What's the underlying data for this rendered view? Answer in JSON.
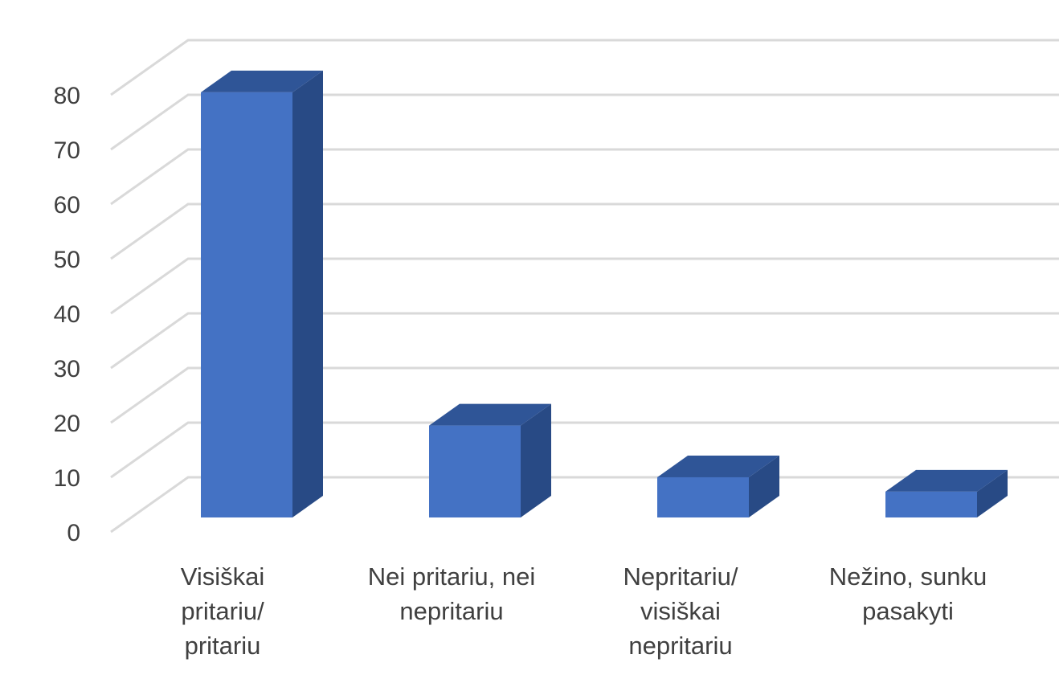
{
  "chart_data": {
    "type": "bar",
    "style": "3d-column",
    "categories": [
      "Visiškai\npritariu/\npritariu",
      "Nei pritariu, nei\nnepritariu",
      "Nepritariu/\nvisiškai\nnepritariu",
      "Nežino, sunku\npasakyti"
    ],
    "values": [
      74,
      16,
      7,
      4.5
    ],
    "ylim": [
      0,
      80
    ],
    "yticks": [
      0,
      10,
      20,
      30,
      40,
      50,
      60,
      70,
      80
    ],
    "grid": true,
    "legend": "none",
    "colors": {
      "front": "#4472C4",
      "top": "#2F5597",
      "side": "#284A85",
      "grid": "#D9D9D9"
    }
  }
}
